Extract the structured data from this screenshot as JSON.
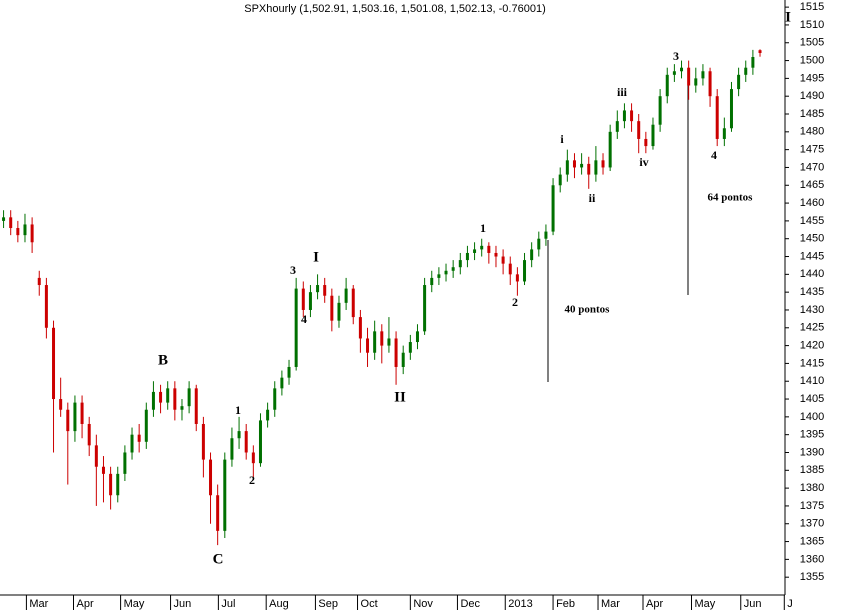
{
  "chart_data": {
    "type": "candlestick",
    "title": "SPXhourly (1,502.91, 1,503.16, 1,501.08, 1,502.13, -0.76001)",
    "up_color": "#007000",
    "down_color": "#cc0000",
    "xlim": [
      0,
      110
    ],
    "xticks": [
      {
        "value": 3.7,
        "label": "Mar"
      },
      {
        "value": 10.3,
        "label": "Apr"
      },
      {
        "value": 16.9,
        "label": "May"
      },
      {
        "value": 23.9,
        "label": "Jun"
      },
      {
        "value": 30.6,
        "label": "Jul"
      },
      {
        "value": 37.3,
        "label": "Aug"
      },
      {
        "value": 44.2,
        "label": "Sep"
      },
      {
        "value": 50.1,
        "label": "Oct"
      },
      {
        "value": 57.5,
        "label": "Nov"
      },
      {
        "value": 64.1,
        "label": "Dec"
      },
      {
        "value": 70.8,
        "label": "2013"
      },
      {
        "value": 77.5,
        "label": "Feb"
      },
      {
        "value": 83.8,
        "label": "Mar"
      },
      {
        "value": 90.1,
        "label": "Apr"
      },
      {
        "value": 96.9,
        "label": "May"
      },
      {
        "value": 103.8,
        "label": "Jun"
      },
      {
        "value": 109.9,
        "label": "J"
      }
    ],
    "ylim": [
      1350,
      1517
    ],
    "yticks": [
      1355,
      1360,
      1365,
      1370,
      1375,
      1380,
      1385,
      1390,
      1395,
      1400,
      1405,
      1410,
      1415,
      1420,
      1425,
      1430,
      1435,
      1440,
      1445,
      1450,
      1455,
      1460,
      1465,
      1470,
      1475,
      1480,
      1485,
      1490,
      1495,
      1500,
      1505,
      1510,
      1515
    ],
    "open": [
      1455,
      1456,
      1453,
      1451,
      1454,
      1439,
      1437,
      1425,
      1405,
      1402,
      1396,
      1404,
      1398,
      1392,
      1386,
      1384,
      1378,
      1384,
      1390,
      1395,
      1393,
      1402,
      1407,
      1404,
      1408,
      1402,
      1403,
      1408,
      1398,
      1388,
      1378,
      1368,
      1388,
      1394,
      1396,
      1390,
      1387,
      1399,
      1402,
      1408,
      1411,
      1414,
      1436,
      1430,
      1435,
      1437,
      1434,
      1427,
      1432,
      1436,
      1428,
      1422,
      1418,
      1424,
      1420,
      1422,
      1414,
      1418,
      1421,
      1424,
      1437,
      1439,
      1440,
      1441,
      1442,
      1444,
      1446,
      1447,
      1448,
      1446,
      1445,
      1443,
      1440,
      1438,
      1444,
      1447,
      1450,
      1452,
      1465,
      1468,
      1472,
      1470,
      1471,
      1468,
      1472,
      1470,
      1480,
      1483,
      1486,
      1483,
      1478,
      1476,
      1482,
      1490,
      1496,
      1497,
      1498,
      1493,
      1495,
      1497,
      1490,
      1478,
      1481,
      1492,
      1496,
      1498,
      1502.91
    ],
    "high": [
      1458,
      1458,
      1455,
      1457,
      1456,
      1441,
      1439,
      1427,
      1411,
      1404,
      1406,
      1406,
      1400,
      1395,
      1389,
      1386,
      1386,
      1392,
      1397,
      1398,
      1404,
      1410,
      1409,
      1410,
      1410,
      1405,
      1410,
      1409,
      1400,
      1390,
      1381,
      1390,
      1397,
      1400,
      1398,
      1392,
      1401,
      1404,
      1410,
      1413,
      1416,
      1439,
      1438,
      1437,
      1440,
      1439,
      1436,
      1434,
      1439,
      1437,
      1430,
      1425,
      1427,
      1426,
      1428,
      1424,
      1420,
      1423,
      1426,
      1439,
      1441,
      1442,
      1443,
      1444,
      1446,
      1448,
      1449,
      1450,
      1449,
      1448,
      1447,
      1445,
      1442,
      1446,
      1449,
      1452,
      1454,
      1467,
      1470,
      1475,
      1474,
      1474,
      1473,
      1476,
      1474,
      1482,
      1486,
      1488,
      1488,
      1485,
      1480,
      1484,
      1492,
      1498,
      1499,
      1500,
      1500,
      1498,
      1499,
      1498,
      1492,
      1484,
      1494,
      1498,
      1500,
      1503,
      1503.16
    ],
    "low": [
      1453,
      1451,
      1449,
      1449,
      1446,
      1434,
      1422,
      1390,
      1400,
      1381,
      1393,
      1394,
      1389,
      1375,
      1376,
      1374,
      1376,
      1382,
      1388,
      1390,
      1391,
      1400,
      1401,
      1402,
      1399,
      1399,
      1401,
      1396,
      1383,
      1370,
      1364,
      1366,
      1386,
      1391,
      1388,
      1383,
      1386,
      1397,
      1400,
      1406,
      1409,
      1413,
      1428,
      1428,
      1433,
      1432,
      1424,
      1425,
      1430,
      1426,
      1418,
      1414,
      1416,
      1415,
      1418,
      1409,
      1412,
      1416,
      1419,
      1423,
      1435,
      1437,
      1438,
      1439,
      1440,
      1442,
      1444,
      1445,
      1443,
      1442,
      1440,
      1437,
      1434,
      1437,
      1442,
      1445,
      1448,
      1451,
      1463,
      1466,
      1467,
      1468,
      1464,
      1466,
      1468,
      1469,
      1478,
      1481,
      1480,
      1474,
      1474,
      1475,
      1480,
      1488,
      1494,
      1495,
      1489,
      1491,
      1493,
      1487,
      1476,
      1476,
      1480,
      1490,
      1494,
      1496,
      1501.08
    ],
    "close": [
      1456,
      1453,
      1451,
      1454,
      1449,
      1437,
      1425,
      1405,
      1402,
      1396,
      1404,
      1398,
      1392,
      1386,
      1384,
      1378,
      1384,
      1390,
      1395,
      1393,
      1402,
      1407,
      1404,
      1408,
      1402,
      1403,
      1408,
      1398,
      1388,
      1378,
      1368,
      1388,
      1394,
      1396,
      1390,
      1387,
      1399,
      1402,
      1408,
      1411,
      1414,
      1436,
      1430,
      1435,
      1437,
      1434,
      1427,
      1432,
      1436,
      1428,
      1422,
      1418,
      1424,
      1420,
      1422,
      1414,
      1418,
      1421,
      1424,
      1437,
      1439,
      1440,
      1441,
      1442,
      1444,
      1446,
      1447,
      1448,
      1446,
      1445,
      1443,
      1440,
      1438,
      1444,
      1447,
      1450,
      1452,
      1465,
      1468,
      1472,
      1470,
      1471,
      1468,
      1472,
      1470,
      1480,
      1483,
      1486,
      1483,
      1478,
      1476,
      1482,
      1490,
      1496,
      1497,
      1498,
      1493,
      1495,
      1497,
      1490,
      1478,
      1481,
      1492,
      1496,
      1498,
      1501,
      1502.13
    ],
    "annotations": [
      "B",
      "C",
      "1",
      "2",
      "3",
      "4",
      "I",
      "II",
      "1",
      "2",
      "40 pontos",
      "i",
      "ii",
      "iii",
      "iv",
      "3",
      "4",
      "64 pontos",
      "I"
    ]
  }
}
